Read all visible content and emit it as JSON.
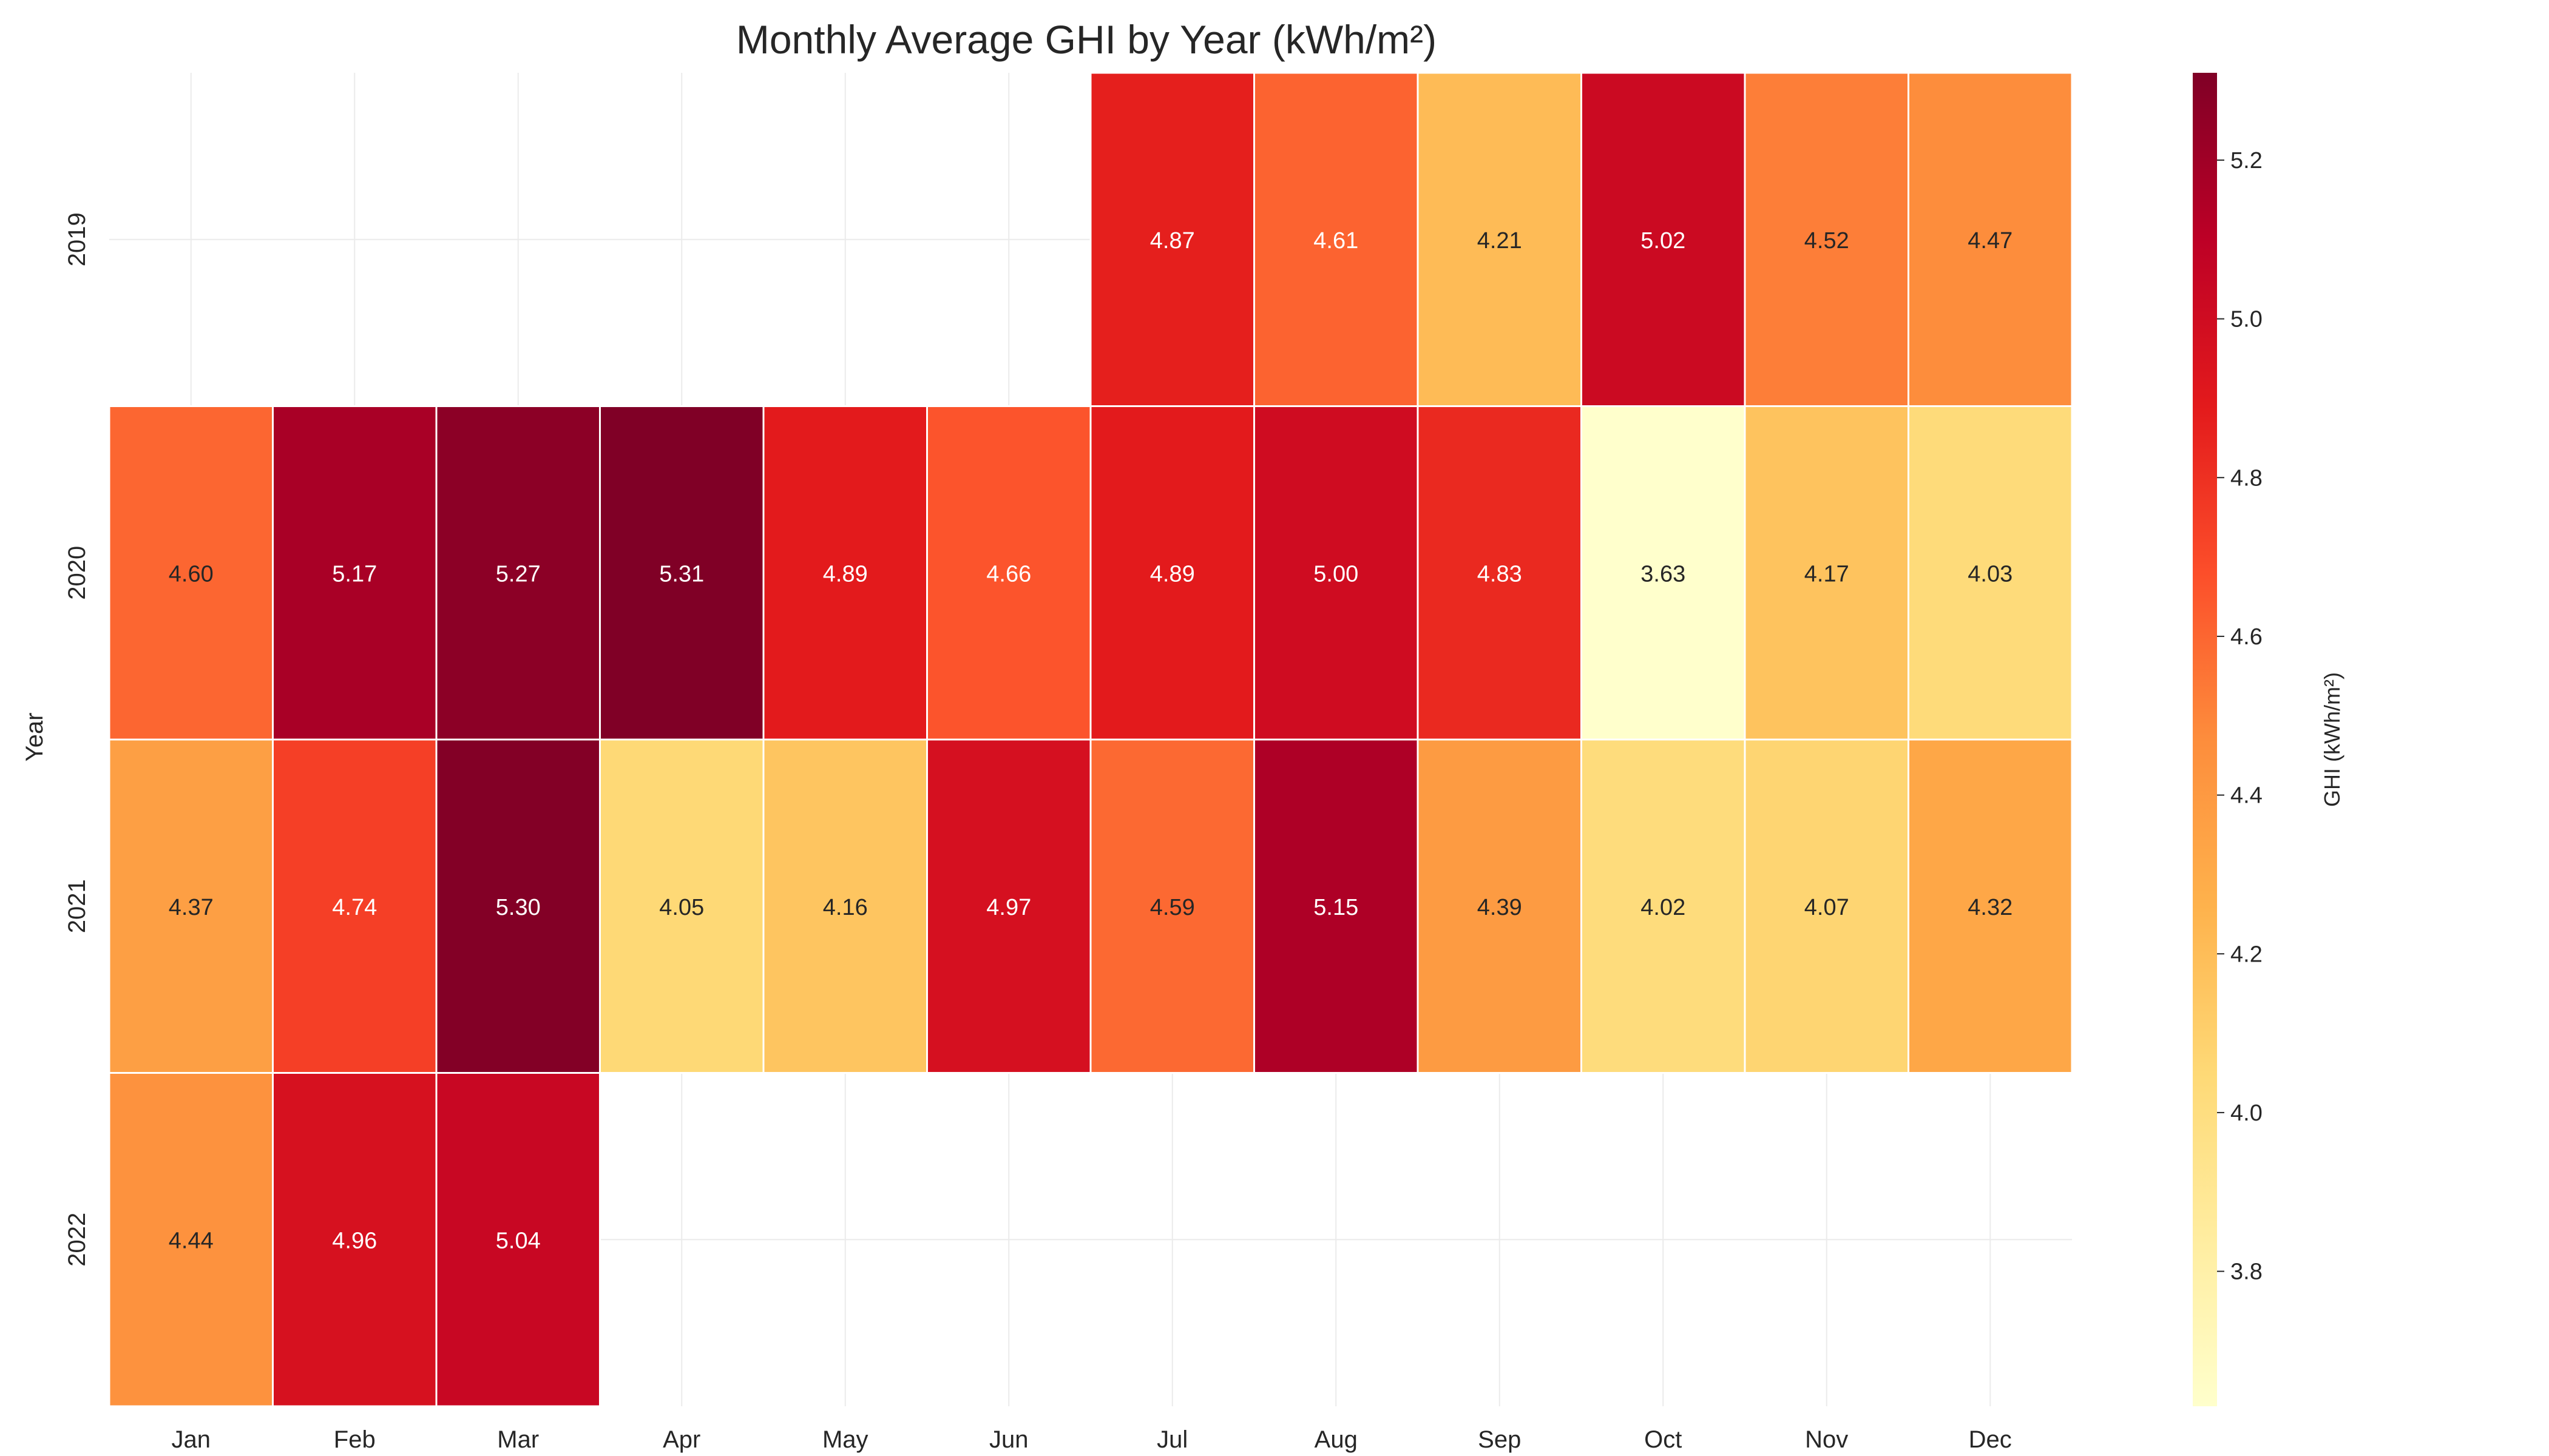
{
  "chart_data": {
    "type": "heatmap",
    "title": "Monthly Average GHI by Year (kWh/m²)",
    "xlabel": "",
    "ylabel": "Year",
    "x": [
      "Jan",
      "Feb",
      "Mar",
      "Apr",
      "May",
      "Jun",
      "Jul",
      "Aug",
      "Sep",
      "Oct",
      "Nov",
      "Dec"
    ],
    "y": [
      "2019",
      "2020",
      "2021",
      "2022"
    ],
    "values": [
      [
        null,
        null,
        null,
        null,
        null,
        null,
        4.87,
        4.61,
        4.21,
        5.02,
        4.52,
        4.47
      ],
      [
        4.6,
        5.17,
        5.27,
        5.31,
        4.89,
        4.66,
        4.89,
        5.0,
        4.83,
        3.63,
        4.17,
        4.03
      ],
      [
        4.37,
        4.74,
        5.3,
        4.05,
        4.16,
        4.97,
        4.59,
        5.15,
        4.39,
        4.02,
        4.07,
        4.32
      ],
      [
        4.44,
        4.96,
        5.04,
        null,
        null,
        null,
        null,
        null,
        null,
        null,
        null,
        null
      ]
    ],
    "value_format": "0.00",
    "colormap": "YlOrRd",
    "color_stops": [
      "#ffffcc",
      "#ffeda0",
      "#fed976",
      "#feb24c",
      "#fd8d3c",
      "#fc4e2a",
      "#e31a1c",
      "#bd0026",
      "#800026"
    ],
    "vmin": 3.63,
    "vmax": 5.31,
    "colorbar": {
      "label": "GHI (kWh/m²)",
      "ticks": [
        3.8,
        4.0,
        4.2,
        4.4,
        4.6,
        4.8,
        5.0,
        5.2
      ],
      "tick_labels": [
        "3.8",
        "4.0",
        "4.2",
        "4.4",
        "4.6",
        "4.8",
        "5.0",
        "5.2"
      ],
      "position": "right"
    },
    "grid": true,
    "cell_border_color": "#ffffff",
    "grid_color": "#ebebeb",
    "dark_text_color": "#262626",
    "light_text_color": "#ffffff"
  }
}
